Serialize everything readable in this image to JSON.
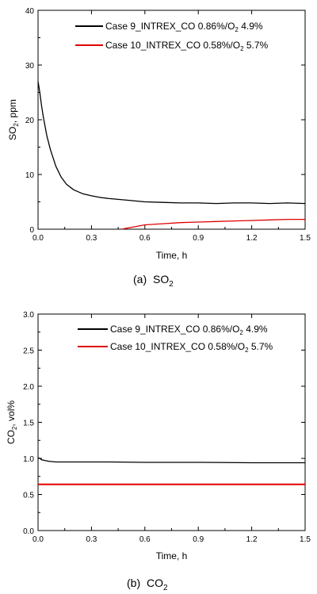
{
  "chart_data": [
    {
      "type": "line",
      "caption": "(a)",
      "caption_species": "SO",
      "caption_sub": "2",
      "xlabel": "Time, h",
      "ylabel_main": "SO",
      "ylabel_sub": "2",
      "ylabel_rest": ", ppm",
      "xlim": [
        0,
        1.5
      ],
      "ylim": [
        0,
        40
      ],
      "xticks": [
        "0.0",
        "0.3",
        "0.6",
        "0.9",
        "1.2",
        "1.5"
      ],
      "yticks": [
        "0",
        "10",
        "20",
        "30",
        "40"
      ],
      "legend_position": "top-right",
      "series": [
        {
          "name": "Case 9_INTREX_CO 0.86%/O",
          "name_sub": "2",
          "name_rest": " 4.9%",
          "color": "#000000",
          "x": [
            0,
            0.01,
            0.02,
            0.03,
            0.05,
            0.07,
            0.1,
            0.13,
            0.16,
            0.2,
            0.25,
            0.3,
            0.35,
            0.4,
            0.5,
            0.6,
            0.7,
            0.8,
            0.9,
            1.0,
            1.1,
            1.2,
            1.3,
            1.4,
            1.5
          ],
          "y": [
            27,
            25,
            22.5,
            20.5,
            17,
            14.5,
            11.5,
            9.5,
            8.2,
            7.2,
            6.5,
            6.1,
            5.8,
            5.6,
            5.3,
            5.0,
            4.9,
            4.8,
            4.8,
            4.7,
            4.8,
            4.8,
            4.7,
            4.8,
            4.7
          ]
        },
        {
          "name": "Case 10_INTREX_CO 0.58%/O",
          "name_sub": "2",
          "name_rest": " 5.7%",
          "color": "#e00000",
          "x": [
            0.47,
            0.5,
            0.55,
            0.6,
            0.7,
            0.8,
            0.9,
            1.0,
            1.1,
            1.2,
            1.3,
            1.4,
            1.5
          ],
          "y": [
            0,
            0.2,
            0.5,
            0.8,
            1.0,
            1.2,
            1.3,
            1.4,
            1.5,
            1.6,
            1.7,
            1.8,
            1.8
          ]
        }
      ]
    },
    {
      "type": "line",
      "caption": "(b)",
      "caption_species": "CO",
      "caption_sub": "2",
      "xlabel": "Time, h",
      "ylabel_main": "CO",
      "ylabel_sub": "2",
      "ylabel_rest": ", vol%",
      "xlim": [
        0,
        1.5
      ],
      "ylim": [
        0,
        3.0
      ],
      "xticks": [
        "0.0",
        "0.3",
        "0.6",
        "0.9",
        "1.2",
        "1.5"
      ],
      "yticks": [
        "0.0",
        "0.5",
        "1.0",
        "1.5",
        "2.0",
        "2.5",
        "3.0"
      ],
      "legend_position": "top-right",
      "series": [
        {
          "name": "Case 9_INTREX_CO 0.86%/O",
          "name_sub": "2",
          "name_rest": " 4.9%",
          "color": "#000000",
          "x": [
            0,
            0.01,
            0.02,
            0.04,
            0.06,
            0.1,
            0.2,
            0.4,
            0.6,
            0.9,
            1.2,
            1.5
          ],
          "y": [
            1.01,
            1.0,
            0.98,
            0.97,
            0.96,
            0.95,
            0.95,
            0.95,
            0.945,
            0.945,
            0.94,
            0.94
          ]
        },
        {
          "name": "Case 10_INTREX_CO 0.58%/O",
          "name_sub": "2",
          "name_rest": " 5.7%",
          "color": "#e00000",
          "x": [
            0,
            0.3,
            0.6,
            0.9,
            1.2,
            1.5
          ],
          "y": [
            0.64,
            0.64,
            0.64,
            0.64,
            0.64,
            0.64
          ]
        }
      ]
    }
  ]
}
